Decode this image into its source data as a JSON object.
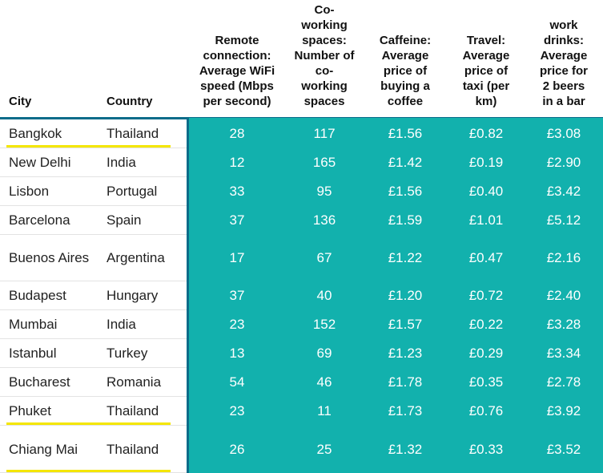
{
  "table": {
    "headers": [
      {
        "key": "city",
        "label": "City"
      },
      {
        "key": "country",
        "label": "Country"
      },
      {
        "key": "wifi",
        "label": "Remote connection: Average WiFi speed (Mbps per second)"
      },
      {
        "key": "cowork",
        "label": "Co-working spaces: Number of co-working spaces"
      },
      {
        "key": "coffee",
        "label": "Caffeine: Average price of buying a coffee"
      },
      {
        "key": "taxi",
        "label": "Travel: Average price of taxi (per km)"
      },
      {
        "key": "beer",
        "label": "work drinks: Average price for 2 beers in a bar"
      }
    ],
    "rows": [
      {
        "city": "Bangkok",
        "country": "Thailand",
        "wifi": "28",
        "cowork": "117",
        "coffee": "£1.56",
        "taxi": "£0.82",
        "beer": "£3.08",
        "highlight": true
      },
      {
        "city": "New Delhi",
        "country": "India",
        "wifi": "12",
        "cowork": "165",
        "coffee": "£1.42",
        "taxi": "£0.19",
        "beer": "£2.90",
        "highlight": false
      },
      {
        "city": "Lisbon",
        "country": "Portugal",
        "wifi": "33",
        "cowork": "95",
        "coffee": "£1.56",
        "taxi": "£0.40",
        "beer": "£3.42",
        "highlight": false
      },
      {
        "city": "Barcelona",
        "country": "Spain",
        "wifi": "37",
        "cowork": "136",
        "coffee": "£1.59",
        "taxi": "£1.01",
        "beer": "£5.12",
        "highlight": false
      },
      {
        "city": "Buenos Aires",
        "country": "Argentina",
        "wifi": "17",
        "cowork": "67",
        "coffee": "£1.22",
        "taxi": "£0.47",
        "beer": "£2.16",
        "highlight": false
      },
      {
        "city": "Budapest",
        "country": "Hungary",
        "wifi": "37",
        "cowork": "40",
        "coffee": "£1.20",
        "taxi": "£0.72",
        "beer": "£2.40",
        "highlight": false
      },
      {
        "city": "Mumbai",
        "country": "India",
        "wifi": "23",
        "cowork": "152",
        "coffee": "£1.57",
        "taxi": "£0.22",
        "beer": "£3.28",
        "highlight": false
      },
      {
        "city": "Istanbul",
        "country": "Turkey",
        "wifi": "13",
        "cowork": "69",
        "coffee": "£1.23",
        "taxi": "£0.29",
        "beer": "£3.34",
        "highlight": false
      },
      {
        "city": "Bucharest",
        "country": "Romania",
        "wifi": "54",
        "cowork": "46",
        "coffee": "£1.78",
        "taxi": "£0.35",
        "beer": "£2.78",
        "highlight": false
      },
      {
        "city": "Phuket",
        "country": "Thailand",
        "wifi": "23",
        "cowork": "11",
        "coffee": "£1.73",
        "taxi": "£0.76",
        "beer": "£3.92",
        "highlight": true
      },
      {
        "city": "Chiang Mai",
        "country": "Thailand",
        "wifi": "26",
        "cowork": "25",
        "coffee": "£1.32",
        "taxi": "£0.33",
        "beer": "£3.52",
        "highlight": true
      }
    ]
  },
  "colors": {
    "teal": "#12b1ad",
    "border": "#0b6c8a",
    "highlight": "#f4e600"
  }
}
